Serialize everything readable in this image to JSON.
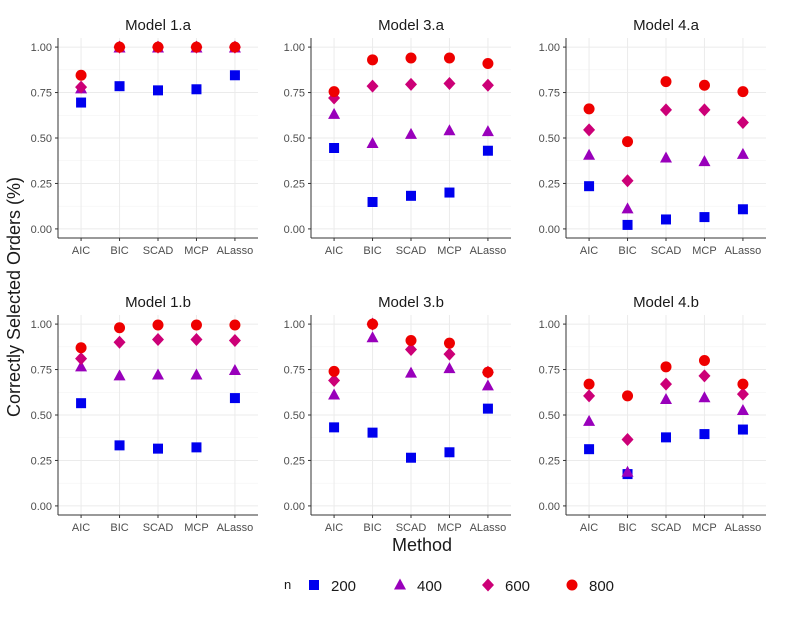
{
  "chart_data": {
    "type": "scatter",
    "xlabel": "Method",
    "ylabel": "Correctly Selected Orders (%)",
    "categories": [
      "AIC",
      "BIC",
      "SCAD",
      "MCP",
      "ALasso"
    ],
    "y_ticks": [
      "0.00",
      "0.25",
      "0.50",
      "0.75",
      "1.00"
    ],
    "ylim": [
      0,
      1
    ],
    "grid": true,
    "legend": {
      "title": "n",
      "position": "bottom",
      "entries": [
        {
          "label": "200",
          "shape": "square",
          "color": "#0000ee"
        },
        {
          "label": "400",
          "shape": "triangle",
          "color": "#9900bb"
        },
        {
          "label": "600",
          "shape": "diamond",
          "color": "#cc0077"
        },
        {
          "label": "800",
          "shape": "circle",
          "color": "#ee0000"
        }
      ]
    },
    "panels": [
      {
        "title": "Model 1.a",
        "series": [
          {
            "n": "200",
            "values": [
              0.695,
              0.785,
              0.762,
              0.768,
              0.845
            ]
          },
          {
            "n": "400",
            "values": [
              0.77,
              0.995,
              0.995,
              0.995,
              0.995
            ]
          },
          {
            "n": "600",
            "values": [
              0.78,
              1.0,
              1.0,
              1.0,
              1.0
            ]
          },
          {
            "n": "800",
            "values": [
              0.845,
              1.0,
              1.0,
              1.0,
              1.0
            ]
          }
        ]
      },
      {
        "title": "Model 3.a",
        "series": [
          {
            "n": "200",
            "values": [
              0.445,
              0.148,
              0.182,
              0.2,
              0.43
            ]
          },
          {
            "n": "400",
            "values": [
              0.63,
              0.47,
              0.52,
              0.54,
              0.535
            ]
          },
          {
            "n": "600",
            "values": [
              0.72,
              0.785,
              0.795,
              0.8,
              0.79
            ]
          },
          {
            "n": "800",
            "values": [
              0.755,
              0.93,
              0.94,
              0.94,
              0.91
            ]
          }
        ]
      },
      {
        "title": "Model 4.a",
        "series": [
          {
            "n": "200",
            "values": [
              0.235,
              0.022,
              0.052,
              0.065,
              0.108
            ]
          },
          {
            "n": "400",
            "values": [
              0.405,
              0.11,
              0.39,
              0.37,
              0.41
            ]
          },
          {
            "n": "600",
            "values": [
              0.545,
              0.265,
              0.655,
              0.655,
              0.585
            ]
          },
          {
            "n": "800",
            "values": [
              0.66,
              0.48,
              0.81,
              0.79,
              0.755
            ]
          }
        ]
      },
      {
        "title": "Model 1.b",
        "series": [
          {
            "n": "200",
            "values": [
              0.565,
              0.333,
              0.315,
              0.322,
              0.593
            ]
          },
          {
            "n": "400",
            "values": [
              0.765,
              0.715,
              0.72,
              0.72,
              0.745
            ]
          },
          {
            "n": "600",
            "values": [
              0.81,
              0.9,
              0.915,
              0.915,
              0.91
            ]
          },
          {
            "n": "800",
            "values": [
              0.87,
              0.98,
              0.995,
              0.995,
              0.995
            ]
          }
        ]
      },
      {
        "title": "Model 3.b",
        "series": [
          {
            "n": "200",
            "values": [
              0.432,
              0.403,
              0.265,
              0.295,
              0.535
            ]
          },
          {
            "n": "400",
            "values": [
              0.61,
              0.925,
              0.73,
              0.755,
              0.66
            ]
          },
          {
            "n": "600",
            "values": [
              0.69,
              1.0,
              0.86,
              0.835,
              0.735
            ]
          },
          {
            "n": "800",
            "values": [
              0.74,
              1.0,
              0.91,
              0.895,
              0.735
            ]
          }
        ]
      },
      {
        "title": "Model 4.b",
        "series": [
          {
            "n": "200",
            "values": [
              0.312,
              0.175,
              0.377,
              0.395,
              0.42
            ]
          },
          {
            "n": "400",
            "values": [
              0.465,
              0.185,
              0.585,
              0.595,
              0.525
            ]
          },
          {
            "n": "600",
            "values": [
              0.605,
              0.365,
              0.67,
              0.715,
              0.615
            ]
          },
          {
            "n": "800",
            "values": [
              0.67,
              0.605,
              0.765,
              0.8,
              0.67
            ]
          }
        ]
      }
    ]
  }
}
